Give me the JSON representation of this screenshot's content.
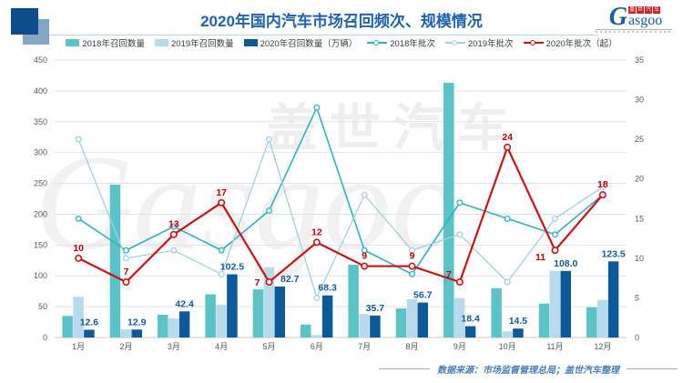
{
  "header": {
    "title": "2020年国内汽车市场召回频次、规模情况",
    "logo": {
      "g": "G",
      "rest": "asgoo",
      "cn_chars": [
        "盖",
        "世",
        "汽",
        "车"
      ]
    }
  },
  "watermark": {
    "cn": "盖世汽车",
    "en": "Gasgoo"
  },
  "footer": {
    "source_note": "数据来源：市场监督管理总局；盖世汽车整理"
  },
  "colors": {
    "title_blue": "#1e62b0",
    "footer_blue": "#4a7fb5",
    "axis_text": "#595959",
    "gridline": "#e2e2e2",
    "bar_label_blue": "#155a96",
    "line_label_red": "#c00000"
  },
  "chart_data": {
    "type": "bar+line combo",
    "title": "2020年国内汽车市场召回频次、规模情况",
    "categories": [
      "1月",
      "2月",
      "3月",
      "4月",
      "5月",
      "6月",
      "7月",
      "8月",
      "9月",
      "10月",
      "11月",
      "12月"
    ],
    "left_axis": {
      "min": 0,
      "max": 450,
      "step": 50
    },
    "right_axis": {
      "min": 0,
      "max": 35,
      "step": 5
    },
    "grid": true,
    "legend_position": "top",
    "bar_series": [
      {
        "name": "2018年召回数量",
        "axis": "left",
        "color": "#5ac3c8",
        "values": [
          35,
          248,
          37,
          70,
          78,
          21,
          118,
          47,
          413,
          80,
          55,
          49
        ]
      },
      {
        "name": "2019年召回数量",
        "axis": "left",
        "color": "#b7dbea",
        "values": [
          66,
          13,
          31,
          53,
          114,
          4,
          38,
          62,
          64,
          10,
          108,
          61
        ]
      },
      {
        "name": "2020年召回数量（万辆）",
        "axis": "left",
        "color": "#0c5a99",
        "show_labels": true,
        "values": [
          12.6,
          12.9,
          42.4,
          102.5,
          82.7,
          68.3,
          35.7,
          56.7,
          18.4,
          14.5,
          108.0,
          123.5
        ],
        "labels": [
          "12.6",
          "12.9",
          "42.4",
          "102.5",
          "82.7",
          "68.3",
          "35.7",
          "56.7",
          "18.4",
          "14.5",
          "108.0",
          "123.5"
        ]
      }
    ],
    "line_series": [
      {
        "name": "2018年批次",
        "axis": "right",
        "color": "#2fb3bf",
        "values": [
          15,
          11,
          14,
          11,
          16,
          29,
          11,
          8,
          17,
          15,
          13,
          18
        ]
      },
      {
        "name": "2019年批次",
        "axis": "right",
        "color": "#a3cfe0",
        "values": [
          25,
          10,
          11,
          8,
          25,
          5,
          18,
          11,
          13,
          7,
          15,
          19
        ]
      },
      {
        "name": "2020年批次（起）",
        "axis": "right",
        "color": "#cf1111",
        "show_labels": true,
        "values": [
          10,
          7,
          13,
          17,
          7,
          12,
          9,
          9,
          7,
          24,
          11,
          18
        ]
      }
    ]
  }
}
